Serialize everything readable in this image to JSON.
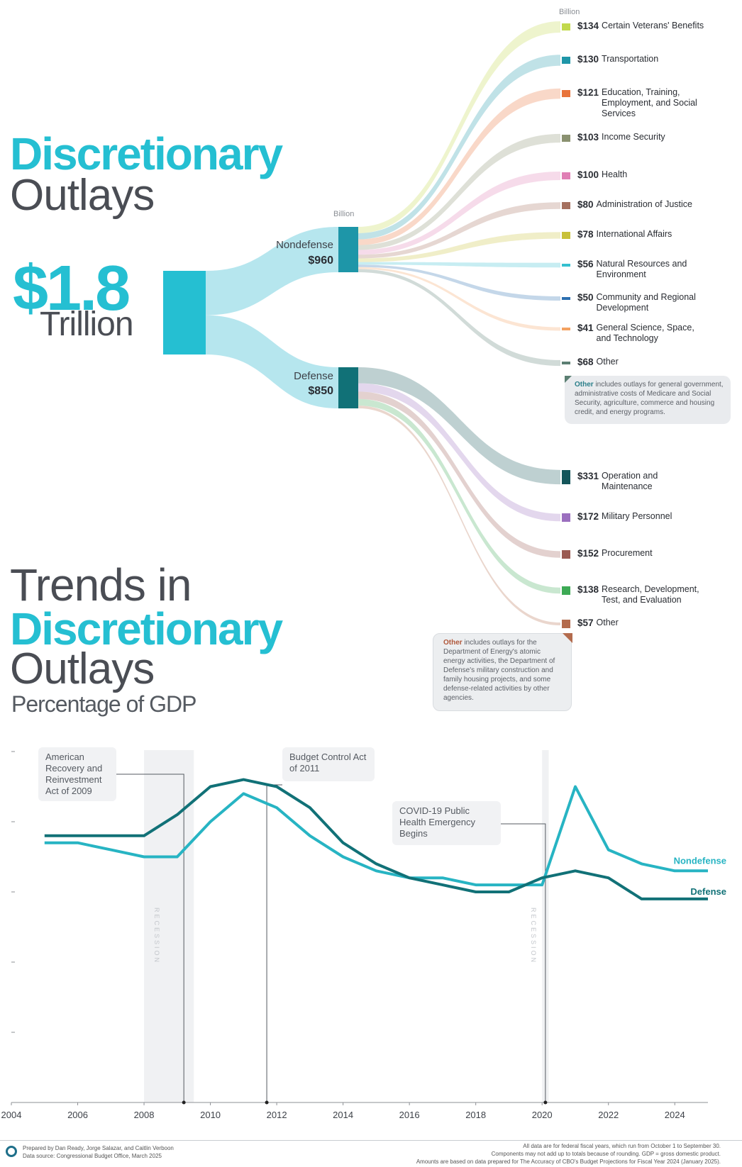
{
  "headline": {
    "line1": "Discretionary",
    "line2": "Outlays",
    "total_amount": "$1.8",
    "total_unit": "Trillion"
  },
  "sankey": {
    "mid_unit": "Billion",
    "right_unit": "Billion",
    "nondefense": {
      "name": "Nondefense",
      "amount": "$960",
      "value": 960
    },
    "defense": {
      "name": "Defense",
      "amount": "$850",
      "value": 850
    },
    "nondefense_items": [
      {
        "amount": "$134",
        "label": "Certain Veterans' Benefits",
        "value": 134,
        "color": "#c2d94c"
      },
      {
        "amount": "$130",
        "label": "Transportation",
        "value": 130,
        "color": "#1e96a8"
      },
      {
        "amount": "$121",
        "label": "Education, Training, Employment, and Social Services",
        "value": 121,
        "color": "#e8733a"
      },
      {
        "amount": "$103",
        "label": "Income Security",
        "value": 103,
        "color": "#8a9170"
      },
      {
        "amount": "$100",
        "label": "Health",
        "value": 100,
        "color": "#e07fb5"
      },
      {
        "amount": "$80",
        "label": "Administration of Justice",
        "value": 80,
        "color": "#a5705f"
      },
      {
        "amount": "$78",
        "label": "International Affairs",
        "value": 78,
        "color": "#c8c13a"
      },
      {
        "amount": "$56",
        "label": "Natural Resources and Environment",
        "value": 56,
        "color": "#35c0cf"
      },
      {
        "amount": "$50",
        "label": "Community and Regional Development",
        "value": 50,
        "color": "#2c6fb0"
      },
      {
        "amount": "$41",
        "label": "General Science, Space, and Technology",
        "value": 41,
        "color": "#f4a261"
      },
      {
        "amount": "$68",
        "label": "Other",
        "value": 68,
        "color": "#5b7f72"
      }
    ],
    "defense_items": [
      {
        "amount": "$331",
        "label": "Operation and Maintenance",
        "value": 331,
        "color": "#14555a"
      },
      {
        "amount": "$172",
        "label": "Military Personnel",
        "value": 172,
        "color": "#9b6fbf"
      },
      {
        "amount": "$152",
        "label": "Procurement",
        "value": 152,
        "color": "#9a5a52"
      },
      {
        "amount": "$138",
        "label": "Research, Development, Test, and Evaluation",
        "value": 138,
        "color": "#3daa55"
      },
      {
        "amount": "$57",
        "label": "Other",
        "value": 57,
        "color": "#b36b4d"
      }
    ],
    "nondefense_note": {
      "lead": "Other",
      "text": "includes outlays for general government, administrative costs of Medicare and Social Security, agriculture, commerce and housing credit, and energy programs."
    },
    "defense_note": {
      "lead": "Other",
      "text": "includes outlays for the Department of Energy's atomic energy activities, the Department of Defense's military construction and family housing projects, and some defense-related activities by other agencies."
    }
  },
  "trends": {
    "line1": "Trends in",
    "line2": "Discretionary",
    "line3": "Outlays",
    "subtitle": "Percentage of GDP"
  },
  "chart_data": {
    "type": "line",
    "x": [
      2005,
      2006,
      2007,
      2008,
      2009,
      2010,
      2011,
      2012,
      2013,
      2014,
      2015,
      2016,
      2017,
      2018,
      2019,
      2020,
      2021,
      2022,
      2023,
      2024,
      2025
    ],
    "series": [
      {
        "name": "Nondefense",
        "color": "#27b4c3",
        "values": [
          3.7,
          3.7,
          3.6,
          3.5,
          3.5,
          4.0,
          4.4,
          4.2,
          3.8,
          3.5,
          3.3,
          3.2,
          3.2,
          3.1,
          3.1,
          3.1,
          4.5,
          3.6,
          3.4,
          3.3,
          3.3
        ]
      },
      {
        "name": "Defense",
        "color": "#117177",
        "values": [
          3.8,
          3.8,
          3.8,
          3.8,
          4.1,
          4.5,
          4.6,
          4.5,
          4.2,
          3.7,
          3.4,
          3.2,
          3.1,
          3.0,
          3.0,
          3.2,
          3.3,
          3.2,
          2.9,
          2.9,
          2.9
        ]
      }
    ],
    "x_ticks": [
      "2004",
      "2006",
      "2008",
      "2010",
      "2012",
      "2014",
      "2016",
      "2018",
      "2020",
      "2022",
      "2024"
    ],
    "xlim": [
      2004,
      2025
    ],
    "ylim": [
      0,
      5
    ],
    "y_ticks": [
      0,
      1,
      2,
      3,
      4,
      5
    ],
    "recessions": [
      {
        "label": "RECESSION",
        "start": 2008,
        "end": 2009.5
      },
      {
        "label": "RECESSION",
        "start": 2020,
        "end": 2020.2
      }
    ],
    "annotations": [
      {
        "text": "American Recovery and Reinvestment Act of 2009",
        "x": 2009.2
      },
      {
        "text": "Budget Control Act of 2011",
        "x": 2011.7
      },
      {
        "text": "COVID-19 Public Health Emergency Begins",
        "x": 2020.1
      }
    ],
    "grid": false
  },
  "footer": {
    "credits": "Prepared by Dan Ready, Jorge Salazar, and Caitlin Verboon",
    "source": "Data source: Congressional Budget Office, March 2025",
    "note1": "All data are for federal fiscal years, which run from October 1 to September 30.",
    "note2": "Components may not add up to totals because of rounding. GDP = gross domestic product.",
    "note3": "Amounts are based on data prepared for The Accuracy of CBO's Budget Projections for Fiscal Year 2024 (January 2025)."
  }
}
